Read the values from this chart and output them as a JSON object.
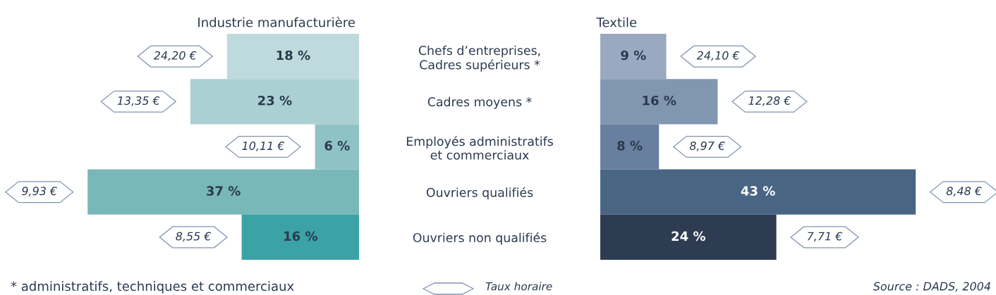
{
  "chart_data": [
    {
      "type": "bar",
      "orientation": "horizontal",
      "title": "Industrie manufacturière",
      "categories": [
        "Chefs d’entreprises,\nCadres supérieurs *",
        "Cadres moyens *",
        "Employés administratifs\net commerciaux",
        "Ouvriers qualifiés",
        "Ouvriers non qualifiés"
      ],
      "values": [
        18,
        23,
        6,
        37,
        16
      ],
      "colors": [
        "#bfdadc",
        "#abd0d3",
        "#8fc2c5",
        "#78b8b9",
        "#3ba2a5"
      ],
      "value_labels": [
        "18 %",
        "23 %",
        "6 %",
        "37 %",
        "16 %"
      ],
      "tick_labels": "y",
      "annotations": [
        {
          "text": "24,20 €",
          "x": 18,
          "y": "Chefs d’entreprises,\nCadres supérieurs *"
        },
        {
          "text": "13,35 €",
          "x": 23,
          "y": "Cadres moyens *"
        },
        {
          "text": "10,11 €",
          "x": 6,
          "y": "Employés administratifs\net commerciaux"
        },
        {
          "text": "9,93 €",
          "x": 37,
          "y": "Ouvriers qualifiés"
        },
        {
          "text": "8,55 €",
          "x": 16,
          "y": "Ouvriers non qualifiés"
        },
        "* administratifs, techniques et commerciaux"
      ]
    },
    {
      "type": "bar",
      "orientation": "horizontal",
      "title": "Textile",
      "categories": [
        "Chefs d’entreprises,\nCadres supérieurs *",
        "Cadres moyens *",
        "Employés administratifs\net commerciaux",
        "Ouvriers qualifiés",
        "Ouvriers non qualifiés"
      ],
      "values": [
        9,
        16,
        8,
        43,
        24
      ],
      "colors": [
        "#9aa9bf",
        "#8196b0",
        "#697f9f",
        "#486584",
        "#2d3c51"
      ],
      "value_labels": [
        "9 %",
        "16 %",
        "8 %",
        "43 %",
        "24 %"
      ],
      "tick_labels": false,
      "annotations": [
        {
          "text": "24,10 €",
          "x": 9,
          "y": "Chefs d’entreprises,\nCadres supérieurs *"
        },
        {
          "text": "12,28 €",
          "x": 16,
          "y": "Cadres moyens *"
        },
        {
          "text": "8,97 €",
          "x": 8,
          "y": "Employés administratifs\net commerciaux"
        },
        {
          "text": "8,48 €",
          "x": 43,
          "y": "Ouvriers qualifiés"
        },
        {
          "text": "7,71 €",
          "x": 24,
          "y": "Ouvriers non qualifiés"
        },
        "Taux horaire",
        "Source : DADS, 2004"
      ]
    }
  ]
}
